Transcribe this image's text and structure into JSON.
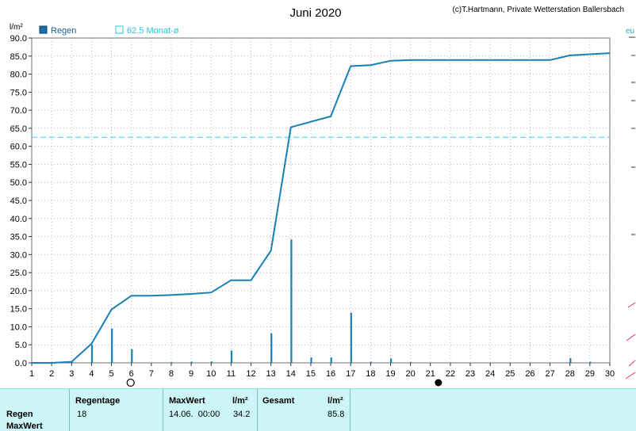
{
  "header": {
    "title": "Juni 2020",
    "copyright": "(c)T.Hartmann, Private Wetterstation Ballersbach",
    "unit": "l/m²",
    "right_edge_text": "eu"
  },
  "legend": [
    {
      "label": "Regen",
      "color": "#1a6fa8",
      "style": "filled-square"
    },
    {
      "label": "62.5 Monat-ø",
      "color": "#22c7d6",
      "style": "outline-square"
    }
  ],
  "colors": {
    "series": "#1a7fb5",
    "average": "#33d0e0",
    "grid": "#9a9a9a",
    "stats_bg": "#ccf5f5"
  },
  "chart_data": {
    "type": "bar",
    "title": "Juni 2020",
    "ylabel": "l/m²",
    "xlim": [
      1,
      30
    ],
    "ylim": [
      0,
      90
    ],
    "grid": true,
    "legend_position": "top-left",
    "y_ticks": [
      "0.0",
      "5.0",
      "10.0",
      "15.0",
      "20.0",
      "25.0",
      "30.0",
      "35.0",
      "40.0",
      "45.0",
      "50.0",
      "55.0",
      "60.0",
      "65.0",
      "70.0",
      "75.0",
      "80.0",
      "85.0",
      "90.0"
    ],
    "x_ticks": [
      "1",
      "2",
      "3",
      "4",
      "5",
      "6",
      "7",
      "8",
      "9",
      "10",
      "11",
      "12",
      "13",
      "14",
      "15",
      "16",
      "17",
      "18",
      "19",
      "20",
      "21",
      "22",
      "23",
      "24",
      "25",
      "26",
      "27",
      "28",
      "29",
      "30"
    ],
    "series": [
      {
        "name": "Regen",
        "type": "bar",
        "x": [
          3,
          4,
          5,
          6,
          8,
          9,
          10,
          11,
          13,
          14,
          15,
          16,
          17,
          18,
          19,
          20,
          28,
          29
        ],
        "values": [
          0.3,
          5.0,
          9.5,
          3.8,
          0.2,
          0.3,
          0.4,
          3.4,
          8.2,
          34.2,
          1.5,
          1.5,
          13.9,
          0.3,
          1.2,
          0.2,
          1.3,
          0.3
        ]
      },
      {
        "name": "",
        "type": "line",
        "x": [
          1,
          2,
          3,
          4,
          5,
          6,
          7,
          8,
          9,
          10,
          11,
          12,
          13,
          14,
          15,
          16,
          17,
          18,
          19,
          20,
          21,
          22,
          23,
          24,
          25,
          26,
          27,
          28,
          29,
          30
        ],
        "values": [
          0.0,
          0.0,
          0.3,
          5.3,
          14.8,
          18.6,
          18.6,
          18.8,
          19.1,
          19.5,
          22.9,
          22.9,
          31.1,
          65.3,
          66.8,
          68.3,
          82.2,
          82.5,
          83.7,
          83.9,
          83.9,
          83.9,
          83.9,
          83.9,
          83.9,
          83.9,
          83.9,
          85.2,
          85.5,
          85.8
        ]
      }
    ],
    "reference_line": {
      "value": 62.5,
      "label": "62.5 Monat-ø"
    },
    "moon_markers": [
      {
        "day": 6,
        "phase": "full"
      },
      {
        "day": 21.4,
        "phase": "new"
      }
    ]
  },
  "stats": {
    "row_labels": [
      "Regen",
      "MaxWert"
    ],
    "regentage_header": "Regentage",
    "regentage_value": "18",
    "maxwert_header": "MaxWert",
    "unit_header": "l/m²",
    "maxwert_date": "14.06.  00:00",
    "maxwert_value": "34.2",
    "gesamt_header": "Gesamt",
    "gesamt_unit": "l/m²",
    "gesamt_value": "85.8"
  }
}
